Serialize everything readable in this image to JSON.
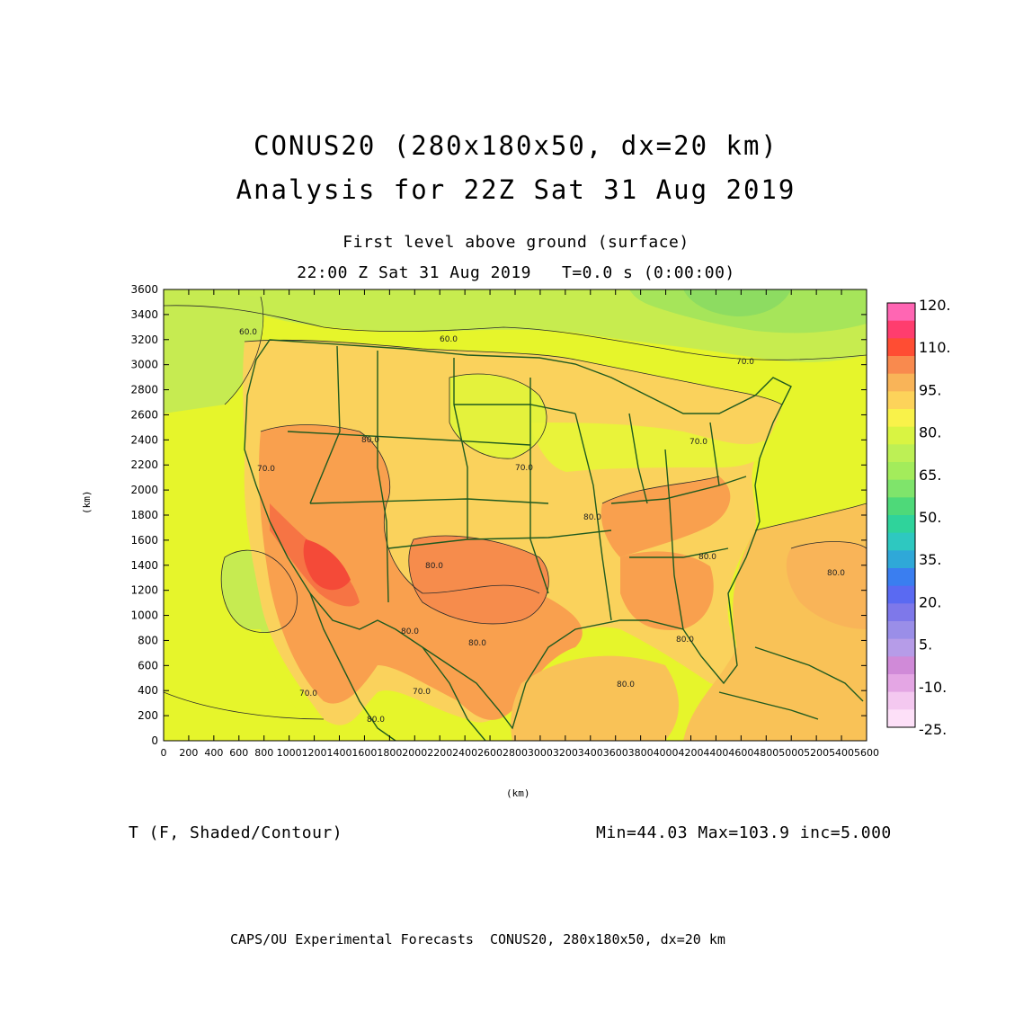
{
  "header": {
    "title_line1": "CONUS20 (280x180x50, dx=20 km)",
    "title_line2": "Analysis for 22Z Sat 31 Aug 2019",
    "subtitle_line1": "First level above ground (surface)",
    "subtitle_line2": "22:00 Z Sat 31 Aug 2019   T=0.0 s (0:00:00)"
  },
  "axes": {
    "x_label": "(km)",
    "y_label": "(km)",
    "x_ticks": [
      "0",
      "200",
      "400",
      "600",
      "800",
      "1000",
      "1200",
      "1400",
      "1600",
      "1800",
      "2000",
      "2200",
      "2400",
      "2600",
      "2800",
      "3000",
      "3200",
      "3400",
      "3600",
      "3800",
      "4000",
      "4200",
      "4400",
      "4600",
      "4800",
      "5000",
      "5200",
      "5400",
      "5600"
    ],
    "y_ticks": [
      "0",
      "200",
      "400",
      "600",
      "800",
      "1000",
      "1200",
      "1400",
      "1600",
      "1800",
      "2000",
      "2200",
      "2400",
      "2600",
      "2800",
      "3000",
      "3200",
      "3400",
      "3600"
    ]
  },
  "colorbar": {
    "labels": [
      "120.",
      "110.",
      "95.",
      "80.",
      "65.",
      "50.",
      "35.",
      "20.",
      "5.",
      "-10.",
      "-25."
    ],
    "colors": [
      "#ff66b3",
      "#ff3d6e",
      "#ff4d33",
      "#f98a4e",
      "#f9b458",
      "#fdd35a",
      "#f9f24a",
      "#d9f442",
      "#bdf055",
      "#a3ec5b",
      "#7fe46b",
      "#4ed979",
      "#2fd39b",
      "#2ec8c0",
      "#2fa8d8",
      "#3a7ef0",
      "#5a6af2",
      "#7e78ea",
      "#9a8ee8",
      "#b69ce8",
      "#d08ad8",
      "#e4a6e4",
      "#f4c8f0",
      "#fde0f8"
    ]
  },
  "contour_labels": [
    "60.0",
    "70.0",
    "60.0",
    "70.0",
    "70.0",
    "80.0",
    "80.0",
    "80.0",
    "70.0",
    "80.0",
    "80.0",
    "80.0",
    "80.0",
    "80.0",
    "70.0",
    "70.0",
    "80.0",
    "80.0"
  ],
  "bottom_info": {
    "variable": "T (F, Shaded/Contour)",
    "stats": "Min=44.03 Max=103.9 inc=5.000"
  },
  "footer": "CAPS/OU Experimental Forecasts  CONUS20, 280x180x50, dx=20 km"
}
